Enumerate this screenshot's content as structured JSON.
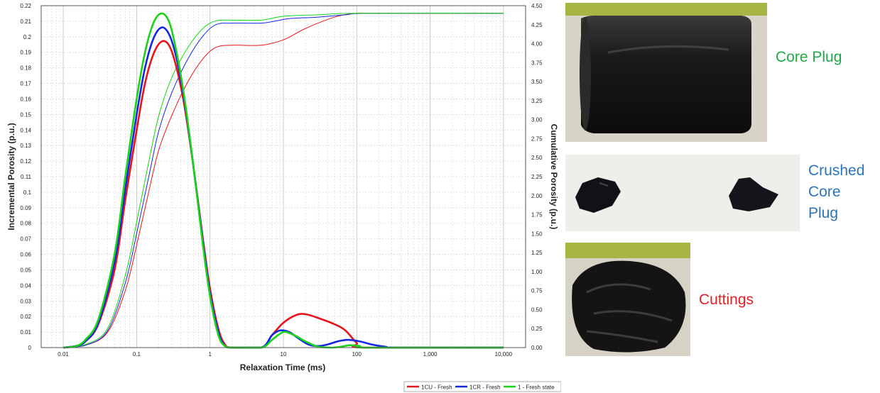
{
  "chart_data": {
    "type": "line",
    "xlabel": "Relaxation Time (ms)",
    "ylabel_left": "Incremental Porosity (p.u.)",
    "ylabel_right": "Cumulative Porosity (p.u.)",
    "x_scale": "log",
    "xlim": [
      0.005,
      20000
    ],
    "ylim_left": [
      0,
      0.22
    ],
    "ylim_right": [
      0,
      4.5
    ],
    "x_ticks": [
      0.01,
      0.1,
      1,
      10,
      100,
      1000,
      10000
    ],
    "x_tick_labels": [
      "0.01",
      "0.1",
      "1",
      "10",
      "100",
      "1,000",
      "10,000"
    ],
    "y_left_ticks": [
      0,
      0.01,
      0.02,
      0.03,
      0.04,
      0.05,
      0.06,
      0.07,
      0.08,
      0.09,
      0.1,
      0.11,
      0.12,
      0.13,
      0.14,
      0.15,
      0.16,
      0.17,
      0.18,
      0.19,
      0.2,
      0.21,
      0.22
    ],
    "y_left_tick_labels": [
      "0",
      "0.01",
      "0.02",
      "0.03",
      "0.04",
      "0.05",
      "0.06",
      "0.07",
      "0.08",
      "0.09",
      "0.1",
      "0.11",
      "0.12",
      "0.13",
      "0.14",
      "0.15",
      "0.16",
      "0.17",
      "0.18",
      "0.19",
      "0.2",
      "0.21",
      "0.22"
    ],
    "y_right_ticks": [
      0,
      0.25,
      0.5,
      0.75,
      1,
      1.25,
      1.5,
      1.75,
      2,
      2.25,
      2.5,
      2.75,
      3,
      3.25,
      3.5,
      3.75,
      4,
      4.25,
      4.5
    ],
    "y_right_tick_labels": [
      "0.00",
      "0.25",
      "0.50",
      "0.75",
      "1.00",
      "1.25",
      "1.50",
      "1.75",
      "2.00",
      "2.25",
      "2.50",
      "2.75",
      "3.00",
      "3.25",
      "3.50",
      "3.75",
      "4.00",
      "4.25",
      "4.50"
    ],
    "grid": true,
    "legend_position": "bottom-right",
    "series": [
      {
        "name": "1CU - Fresh",
        "color": "#e8141c",
        "incremental": [
          [
            0.01,
            0
          ],
          [
            0.015,
            0.001
          ],
          [
            0.02,
            0.004
          ],
          [
            0.03,
            0.015
          ],
          [
            0.05,
            0.05
          ],
          [
            0.07,
            0.095
          ],
          [
            0.1,
            0.14
          ],
          [
            0.13,
            0.17
          ],
          [
            0.17,
            0.189
          ],
          [
            0.22,
            0.197
          ],
          [
            0.28,
            0.194
          ],
          [
            0.35,
            0.18
          ],
          [
            0.45,
            0.155
          ],
          [
            0.6,
            0.115
          ],
          [
            0.8,
            0.07
          ],
          [
            1.0,
            0.038
          ],
          [
            1.3,
            0.012
          ],
          [
            1.6,
            0.002
          ],
          [
            2,
            0
          ],
          [
            5,
            0
          ],
          [
            7,
            0.008
          ],
          [
            10,
            0.016
          ],
          [
            15,
            0.021
          ],
          [
            20,
            0.0215
          ],
          [
            30,
            0.019
          ],
          [
            50,
            0.015
          ],
          [
            70,
            0.011
          ],
          [
            100,
            0.003
          ],
          [
            130,
            0
          ],
          [
            10000,
            0
          ]
        ],
        "cumulative": [
          [
            0.01,
            0
          ],
          [
            0.02,
            0.03
          ],
          [
            0.04,
            0.2
          ],
          [
            0.07,
            0.75
          ],
          [
            0.1,
            1.35
          ],
          [
            0.15,
            2.1
          ],
          [
            0.2,
            2.6
          ],
          [
            0.3,
            3.05
          ],
          [
            0.5,
            3.5
          ],
          [
            0.8,
            3.8
          ],
          [
            1.2,
            3.95
          ],
          [
            2,
            3.98
          ],
          [
            5,
            3.98
          ],
          [
            10,
            4.05
          ],
          [
            20,
            4.2
          ],
          [
            50,
            4.35
          ],
          [
            100,
            4.4
          ],
          [
            200,
            4.4
          ],
          [
            10000,
            4.4
          ]
        ]
      },
      {
        "name": "1CR - Fresh",
        "color": "#1428e0",
        "incremental": [
          [
            0.01,
            0
          ],
          [
            0.015,
            0.001
          ],
          [
            0.02,
            0.004
          ],
          [
            0.03,
            0.016
          ],
          [
            0.05,
            0.055
          ],
          [
            0.07,
            0.102
          ],
          [
            0.1,
            0.15
          ],
          [
            0.13,
            0.18
          ],
          [
            0.17,
            0.199
          ],
          [
            0.22,
            0.206
          ],
          [
            0.28,
            0.201
          ],
          [
            0.35,
            0.186
          ],
          [
            0.45,
            0.158
          ],
          [
            0.6,
            0.115
          ],
          [
            0.8,
            0.068
          ],
          [
            1.0,
            0.035
          ],
          [
            1.3,
            0.01
          ],
          [
            1.6,
            0.001
          ],
          [
            2,
            0
          ],
          [
            5,
            0
          ],
          [
            7,
            0.008
          ],
          [
            9,
            0.011
          ],
          [
            12,
            0.01
          ],
          [
            16,
            0.006
          ],
          [
            22,
            0.002
          ],
          [
            30,
            0.001
          ],
          [
            40,
            0.002
          ],
          [
            55,
            0.004
          ],
          [
            75,
            0.005
          ],
          [
            110,
            0.004
          ],
          [
            160,
            0.002
          ],
          [
            250,
            0.0005
          ],
          [
            350,
            0
          ],
          [
            10000,
            0
          ]
        ],
        "cumulative": [
          [
            0.01,
            0
          ],
          [
            0.02,
            0.03
          ],
          [
            0.04,
            0.22
          ],
          [
            0.07,
            0.85
          ],
          [
            0.1,
            1.5
          ],
          [
            0.15,
            2.3
          ],
          [
            0.2,
            2.85
          ],
          [
            0.3,
            3.35
          ],
          [
            0.5,
            3.8
          ],
          [
            0.8,
            4.1
          ],
          [
            1.2,
            4.25
          ],
          [
            2,
            4.27
          ],
          [
            5,
            4.27
          ],
          [
            8,
            4.3
          ],
          [
            12,
            4.33
          ],
          [
            30,
            4.35
          ],
          [
            70,
            4.38
          ],
          [
            150,
            4.4
          ],
          [
            10000,
            4.4
          ]
        ]
      },
      {
        "name": "1 - Fresh state",
        "color": "#19d219",
        "incremental": [
          [
            0.01,
            0
          ],
          [
            0.015,
            0.001
          ],
          [
            0.02,
            0.005
          ],
          [
            0.03,
            0.018
          ],
          [
            0.05,
            0.06
          ],
          [
            0.07,
            0.11
          ],
          [
            0.1,
            0.16
          ],
          [
            0.13,
            0.19
          ],
          [
            0.17,
            0.209
          ],
          [
            0.22,
            0.215
          ],
          [
            0.28,
            0.209
          ],
          [
            0.35,
            0.19
          ],
          [
            0.45,
            0.16
          ],
          [
            0.6,
            0.115
          ],
          [
            0.8,
            0.066
          ],
          [
            1.0,
            0.033
          ],
          [
            1.3,
            0.008
          ],
          [
            1.6,
            0.001
          ],
          [
            2,
            0
          ],
          [
            5,
            0
          ],
          [
            7,
            0.005
          ],
          [
            10,
            0.01
          ],
          [
            14,
            0.008
          ],
          [
            20,
            0.004
          ],
          [
            30,
            0.0005
          ],
          [
            45,
            0
          ],
          [
            60,
            0.0005
          ],
          [
            80,
            0.0015
          ],
          [
            110,
            0.001
          ],
          [
            150,
            0
          ],
          [
            10000,
            0
          ]
        ],
        "cumulative": [
          [
            0.01,
            0
          ],
          [
            0.02,
            0.04
          ],
          [
            0.04,
            0.25
          ],
          [
            0.07,
            0.95
          ],
          [
            0.1,
            1.65
          ],
          [
            0.15,
            2.5
          ],
          [
            0.2,
            3.05
          ],
          [
            0.3,
            3.55
          ],
          [
            0.5,
            3.95
          ],
          [
            0.8,
            4.2
          ],
          [
            1.2,
            4.3
          ],
          [
            2,
            4.31
          ],
          [
            5,
            4.31
          ],
          [
            10,
            4.36
          ],
          [
            30,
            4.38
          ],
          [
            100,
            4.4
          ],
          [
            10000,
            4.4
          ]
        ]
      }
    ]
  },
  "photos": [
    {
      "label": "Core Plug",
      "label_color": "#21a84a",
      "icon": "core-plug-photo"
    },
    {
      "label": "Crushed Core Plug",
      "label_lines": [
        "Crushed",
        "Core",
        "Plug"
      ],
      "label_color": "#2e74b5",
      "icon": "crushed-core-photo"
    },
    {
      "label": "Cuttings",
      "label_color": "#e0202a",
      "icon": "cuttings-photo"
    }
  ]
}
